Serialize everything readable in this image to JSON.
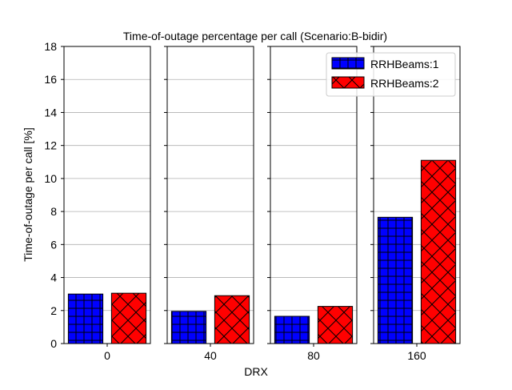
{
  "chart_data": {
    "type": "bar",
    "title": "Time-of-outage percentage per call (Scenario:B-bidir)",
    "xlabel": "DRX",
    "ylabel": "Time-of-outage per call [%]",
    "categories": [
      "0",
      "40",
      "80",
      "160"
    ],
    "series": [
      {
        "name": "RRHBeams:1",
        "color": "#0000ff",
        "hatch": "grid",
        "values": [
          3.0,
          1.95,
          1.65,
          7.65
        ]
      },
      {
        "name": "RRHBeams:2",
        "color": "#ff0000",
        "hatch": "cross",
        "values": [
          3.05,
          2.9,
          2.25,
          11.1
        ]
      }
    ],
    "ylim": [
      0,
      18
    ],
    "yticks": [
      "0",
      "2",
      "4",
      "6",
      "8",
      "10",
      "12",
      "14",
      "16",
      "18"
    ],
    "grid": "y",
    "legend": "top-right"
  }
}
